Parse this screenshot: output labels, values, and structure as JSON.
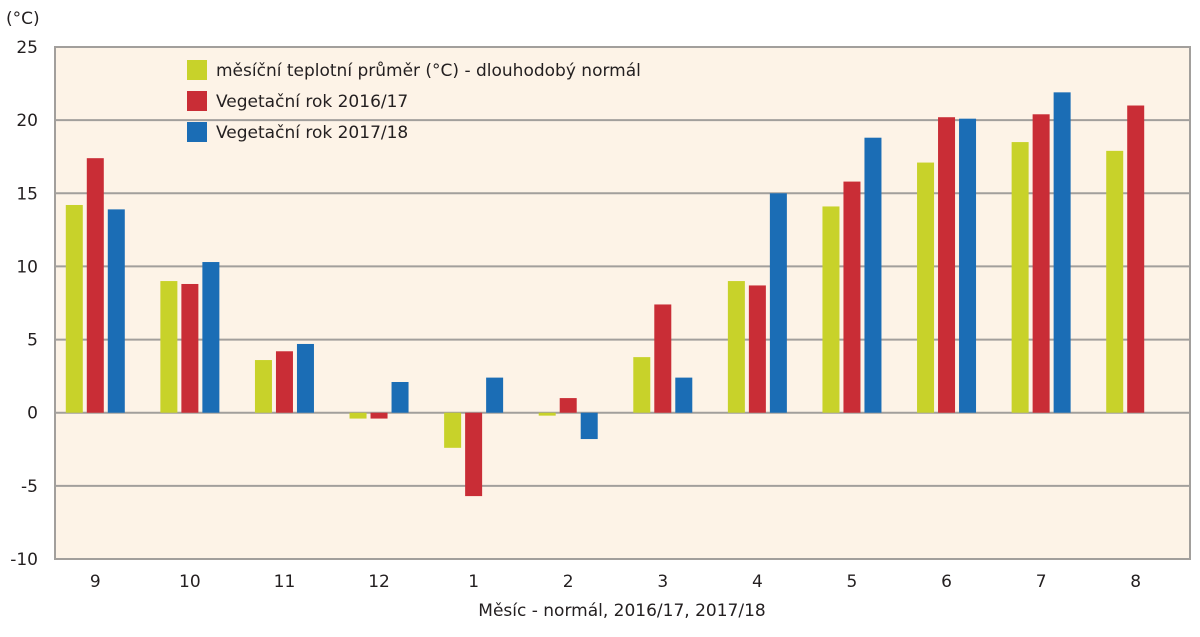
{
  "chart_data": {
    "type": "bar",
    "title": "",
    "unit_label": "(°C)",
    "xlabel": "Měsíc - normál, 2016/17, 2017/18",
    "ylabel": "(°C)",
    "ylim": [
      -10,
      25
    ],
    "yticks": [
      25,
      20,
      15,
      10,
      5,
      0,
      -5,
      -10
    ],
    "grid": true,
    "legend_position": "top-left",
    "categories": [
      "9",
      "10",
      "11",
      "12",
      "1",
      "2",
      "3",
      "4",
      "5",
      "6",
      "7",
      "8"
    ],
    "series": [
      {
        "name": "měsíční teplotní průměr (°C) - dlouhodobý normál",
        "color": "#c8d22a",
        "values": [
          14.2,
          9.0,
          3.6,
          -0.4,
          -2.4,
          -0.2,
          3.8,
          9.0,
          14.1,
          17.1,
          18.5,
          17.9
        ]
      },
      {
        "name": "Vegetační rok 2016/17",
        "color": "#c92d36",
        "values": [
          17.4,
          8.8,
          4.2,
          -0.4,
          -5.7,
          1.0,
          7.4,
          8.7,
          15.8,
          20.2,
          20.4,
          21.0
        ]
      },
      {
        "name": "Vegetační rok 2017/18",
        "color": "#1b6db5",
        "values": [
          13.9,
          10.3,
          4.7,
          2.1,
          2.4,
          -1.8,
          2.4,
          15.0,
          18.8,
          20.1,
          21.9,
          null
        ]
      }
    ]
  },
  "style": {
    "plot_background": "#fdf3e7",
    "grid_color": "#a29f9c",
    "frame_color": "#a29f9c"
  }
}
